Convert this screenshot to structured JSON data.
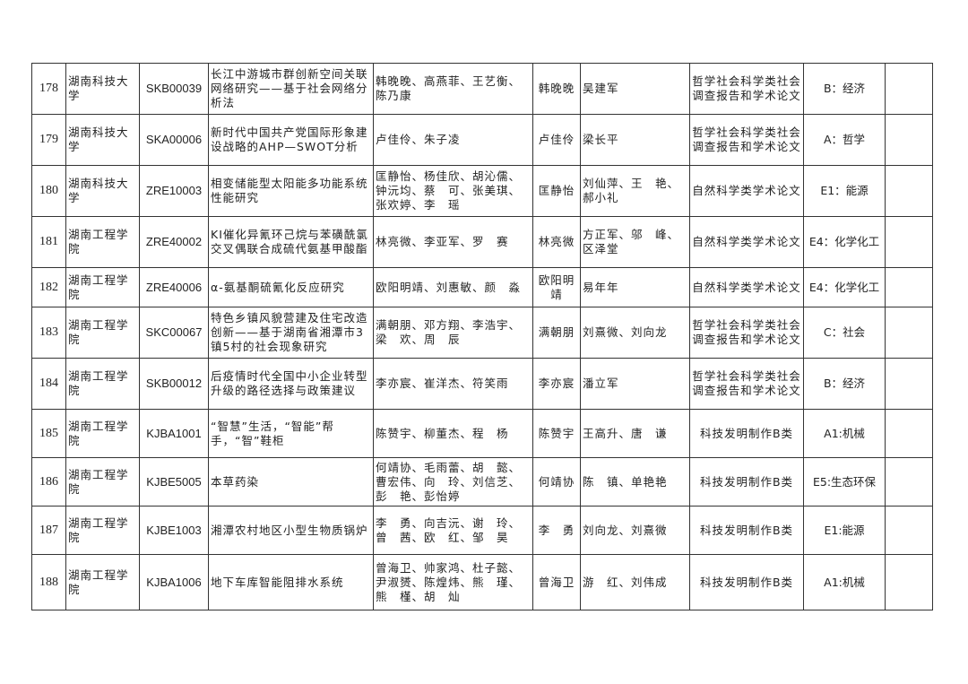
{
  "rows": [
    {
      "no": "178",
      "school": "湖南科技大学",
      "code": "SKB00039",
      "title": "长江中游城市群创新空间关联网络研究——基于社会网络分析法",
      "authors": "韩晚晚、高燕菲、王艺衡、陈乃康",
      "first": "韩晚晚",
      "advisors": "吴建军",
      "category": "哲学社会科学类社会调查报告和学术论文",
      "subject": "B：经济",
      "note": ""
    },
    {
      "no": "179",
      "school": "湖南科技大学",
      "code": "SKA00006",
      "title": "新时代中国共产党国际形象建设战略的AHP—SWOT分析",
      "authors": "卢佳伶、朱子凌",
      "first": "卢佳伶",
      "advisors": "梁长平",
      "category": "哲学社会科学类社会调查报告和学术论文",
      "subject": "A：哲学",
      "note": ""
    },
    {
      "no": "180",
      "school": "湖南科技大学",
      "code": "ZRE10003",
      "title": "相变储能型太阳能多功能系统性能研究",
      "authors": "匡静怡、杨佳欣、胡沁儒、钟沅均、蔡　可、张美琪、张欢婷、李　瑶",
      "first": "匡静怡",
      "advisors": "刘仙萍、王　艳、郝小礼",
      "category": "自然科学类学术论文",
      "subject": "E1：能源",
      "note": ""
    },
    {
      "no": "181",
      "school": "湖南工程学院",
      "code": "ZRE40002",
      "title": "KI催化异氰环己烷与苯磺酰氯交叉偶联合成硫代氨基甲酸酯",
      "authors": "林亮微、李亚军、罗　赛",
      "first": "林亮微",
      "advisors": "方正军、邬　峰、区泽堂",
      "category": "自然科学类学术论文",
      "subject": "E4：化学化工",
      "note": ""
    },
    {
      "no": "182",
      "school": "湖南工程学院",
      "code": "ZRE40006",
      "title": "α-氨基酮硫氰化反应研究",
      "authors": "欧阳明靖、刘惠敏、颜　淼",
      "first": "欧阳明靖",
      "advisors": "易年年",
      "category": "自然科学类学术论文",
      "subject": "E4：化学化工",
      "note": ""
    },
    {
      "no": "183",
      "school": "湖南工程学院",
      "code": "SKC00067",
      "title": "特色乡镇风貌营建及住宅改造创新——基于湖南省湘潭市3镇5村的社会现象研究",
      "authors": "满朝朋、邓方翔、李浩宇、梁　欢、周　辰",
      "first": "满朝朋",
      "advisors": "刘熹微、刘向龙",
      "category": "哲学社会科学类社会调查报告和学术论文",
      "subject": "C：社会",
      "note": ""
    },
    {
      "no": "184",
      "school": "湖南工程学院",
      "code": "SKB00012",
      "title": "后疫情时代全国中小企业转型升级的路径选择与政策建议",
      "authors": "李亦宸、崔洋杰、符笑雨",
      "first": "李亦宸",
      "advisors": "潘立军",
      "category": "哲学社会科学类社会调查报告和学术论文",
      "subject": "B：经济",
      "note": ""
    },
    {
      "no": "185",
      "school": "湖南工程学院",
      "code": "KJBA1001",
      "title": "“智慧”生活，“智能”帮手，“智”鞋柜",
      "authors": "陈赞宇、柳董杰、程　杨",
      "first": "陈赞宇",
      "advisors": "王高升、唐　谦",
      "category": "科技发明制作B类",
      "subject": "A1:机械",
      "note": ""
    },
    {
      "no": "186",
      "school": "湖南工程学院",
      "code": "KJBE5005",
      "title": "本草药染",
      "authors": "何靖协、毛雨蕾、胡　懿、曹宏伟、向　玲、刘信芝、彭　艳、彭怡婷",
      "first": "何靖协",
      "advisors": "陈　镇、单艳艳",
      "category": "科技发明制作B类",
      "subject": "E5:生态环保",
      "note": ""
    },
    {
      "no": "187",
      "school": "湖南工程学院",
      "code": "KJBE1003",
      "title": "湘潭农村地区小型生物质锅炉",
      "authors": "李　勇、向吉沅、谢　玲、曾　茜、欧　红、邹　昊",
      "first": "李　勇",
      "advisors": "刘向龙、刘熹微",
      "category": "科技发明制作B类",
      "subject": "E1:能源",
      "note": ""
    },
    {
      "no": "188",
      "school": "湖南工程学院",
      "code": "KJBA1006",
      "title": "地下车库智能阻排水系统",
      "authors": "曾海卫、帅家鸿、杜子懿、尹淑赟、陈煌炜、熊　瑾、熊　槿、胡　灿",
      "first": "曾海卫",
      "advisors": "游　红、刘伟成",
      "category": "科技发明制作B类",
      "subject": "A1:机械",
      "note": ""
    }
  ]
}
